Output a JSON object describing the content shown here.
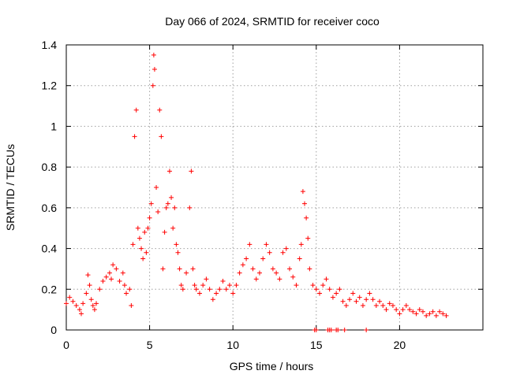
{
  "chart_data": {
    "type": "scatter",
    "title": "Day 066 of 2024, SRMTID for receiver coco",
    "xlabel": "GPS time / hours",
    "ylabel": "SRMTID / TECUs",
    "xlim": [
      0,
      25
    ],
    "ylim": [
      0,
      1.4
    ],
    "x_ticks": [
      0,
      5,
      10,
      15,
      20
    ],
    "x_tick_labels": [
      "0",
      "5",
      "10",
      "15",
      "20"
    ],
    "y_ticks": [
      0,
      0.2,
      0.4,
      0.6,
      0.8,
      1.0,
      1.2,
      1.4
    ],
    "y_tick_labels": [
      "0",
      "0.2",
      "0.4",
      "0.6",
      "0.8",
      "1",
      "1.2",
      "1.4"
    ],
    "grid": true,
    "series": [
      {
        "name": "SRMTID",
        "color": "#ff0000",
        "marker": "plus",
        "x": [
          0.0,
          0.2,
          0.4,
          0.6,
          0.8,
          0.9,
          1.0,
          1.2,
          1.3,
          1.4,
          1.5,
          1.6,
          1.7,
          1.8,
          2.0,
          2.2,
          2.4,
          2.6,
          2.7,
          2.8,
          3.0,
          3.2,
          3.4,
          3.5,
          3.6,
          3.8,
          3.9,
          4.0,
          4.1,
          4.2,
          4.3,
          4.4,
          4.5,
          4.6,
          4.7,
          4.8,
          4.9,
          5.0,
          5.1,
          5.2,
          5.25,
          5.3,
          5.4,
          5.5,
          5.6,
          5.7,
          5.8,
          5.9,
          6.0,
          6.1,
          6.2,
          6.3,
          6.4,
          6.5,
          6.6,
          6.7,
          6.8,
          6.9,
          7.0,
          7.2,
          7.4,
          7.5,
          7.6,
          7.7,
          7.8,
          8.0,
          8.2,
          8.4,
          8.6,
          8.8,
          9.0,
          9.2,
          9.4,
          9.6,
          9.8,
          10.0,
          10.2,
          10.4,
          10.6,
          10.8,
          11.0,
          11.2,
          11.4,
          11.6,
          11.8,
          12.0,
          12.2,
          12.4,
          12.6,
          12.8,
          13.0,
          13.2,
          13.4,
          13.6,
          13.8,
          14.0,
          14.1,
          14.2,
          14.3,
          14.4,
          14.5,
          14.6,
          14.8,
          15.0,
          15.2,
          15.4,
          15.6,
          15.8,
          16.0,
          16.2,
          16.4,
          16.6,
          16.8,
          17.0,
          17.2,
          17.4,
          17.6,
          17.8,
          18.0,
          18.2,
          18.4,
          18.6,
          18.8,
          19.0,
          19.2,
          19.4,
          19.6,
          19.8,
          20.0,
          20.2,
          20.4,
          20.6,
          20.8,
          21.0,
          21.2,
          21.4,
          21.6,
          21.8,
          22.0,
          22.2,
          22.4,
          22.6,
          22.8,
          14.9,
          15.0,
          15.7,
          15.8,
          15.9,
          16.2,
          16.3,
          16.7,
          18.0
        ],
        "y": [
          0.13,
          0.16,
          0.14,
          0.12,
          0.1,
          0.08,
          0.13,
          0.18,
          0.27,
          0.22,
          0.15,
          0.12,
          0.1,
          0.13,
          0.2,
          0.24,
          0.26,
          0.28,
          0.25,
          0.32,
          0.3,
          0.24,
          0.28,
          0.22,
          0.18,
          0.2,
          0.12,
          0.42,
          0.95,
          1.08,
          0.5,
          0.45,
          0.4,
          0.35,
          0.48,
          0.38,
          0.5,
          0.55,
          0.62,
          1.2,
          1.35,
          1.28,
          0.7,
          0.58,
          1.08,
          0.95,
          0.3,
          0.48,
          0.6,
          0.62,
          0.78,
          0.65,
          0.5,
          0.6,
          0.42,
          0.38,
          0.3,
          0.22,
          0.2,
          0.28,
          0.6,
          0.78,
          0.3,
          0.22,
          0.2,
          0.18,
          0.22,
          0.25,
          0.2,
          0.15,
          0.18,
          0.2,
          0.24,
          0.2,
          0.22,
          0.18,
          0.22,
          0.28,
          0.32,
          0.35,
          0.42,
          0.3,
          0.25,
          0.28,
          0.35,
          0.42,
          0.38,
          0.3,
          0.28,
          0.25,
          0.38,
          0.4,
          0.3,
          0.26,
          0.22,
          0.35,
          0.42,
          0.68,
          0.62,
          0.55,
          0.45,
          0.3,
          0.22,
          0.2,
          0.18,
          0.22,
          0.25,
          0.2,
          0.16,
          0.18,
          0.2,
          0.14,
          0.12,
          0.15,
          0.18,
          0.14,
          0.16,
          0.12,
          0.15,
          0.18,
          0.15,
          0.12,
          0.14,
          0.12,
          0.1,
          0.13,
          0.12,
          0.1,
          0.08,
          0.1,
          0.12,
          0.1,
          0.09,
          0.08,
          0.1,
          0.09,
          0.07,
          0.08,
          0.09,
          0.07,
          0.09,
          0.08,
          0.07,
          0.0,
          0.0,
          0.0,
          0.0,
          0.0,
          0.0,
          0.0,
          0.0,
          0.0
        ]
      }
    ]
  }
}
